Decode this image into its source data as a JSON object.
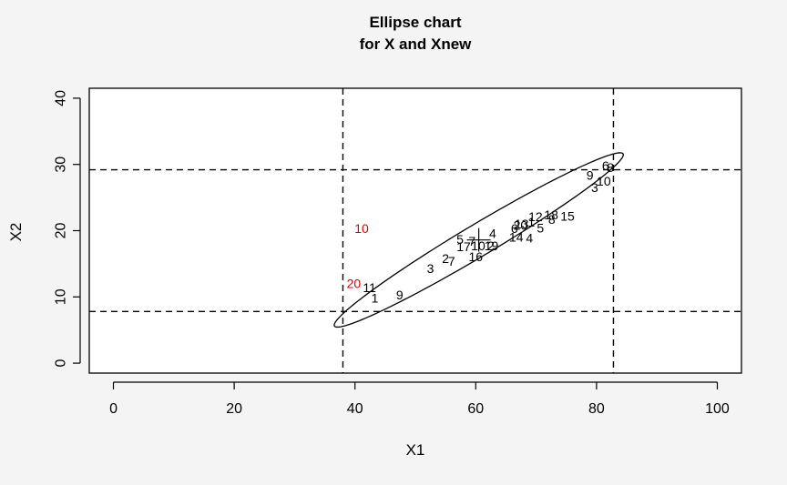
{
  "chart_data": {
    "type": "scatter",
    "title": "Ellipse chart",
    "subtitle": "for X and Xnew",
    "xlabel": "X1",
    "ylabel": "X2",
    "xlim": [
      -4,
      104
    ],
    "ylim": [
      -1.5,
      41.5
    ],
    "xticks": [
      0,
      20,
      40,
      60,
      80,
      100
    ],
    "yticks": [
      0,
      10,
      20,
      30,
      40
    ],
    "grid": false,
    "colors": {
      "in_control": "#000000",
      "out_of_control": "#e00000"
    },
    "center": [
      60.5,
      18.6
    ],
    "ellipse": {
      "center": [
        60.5,
        18.6
      ],
      "semi_major": 27.2,
      "semi_minor": 2.45,
      "angle_deg": 28.5
    },
    "limits": {
      "x_lower": 38,
      "x_upper": 82.8,
      "y_lower": 7.8,
      "y_upper": 29.2
    },
    "series": [
      {
        "name": "X",
        "points": [
          {
            "label": "1",
            "x": 43.3,
            "y": 9.8
          },
          {
            "label": "2",
            "x": 55.0,
            "y": 15.8
          },
          {
            "label": "3",
            "x": 52.5,
            "y": 14.3
          },
          {
            "label": "4",
            "x": 62.8,
            "y": 19.6
          },
          {
            "label": "5",
            "x": 57.4,
            "y": 18.7
          },
          {
            "label": "6",
            "x": 66.4,
            "y": 20.3
          },
          {
            "label": "7",
            "x": 56.0,
            "y": 15.4
          },
          {
            "label": "8",
            "x": 72.6,
            "y": 21.7
          },
          {
            "label": "9",
            "x": 47.4,
            "y": 10.3
          },
          {
            "label": "10",
            "x": 81.2,
            "y": 27.5
          },
          {
            "label": "11",
            "x": 42.4,
            "y": 11.4
          },
          {
            "label": "12",
            "x": 69.9,
            "y": 22.1
          },
          {
            "label": "13",
            "x": 67.6,
            "y": 21.0
          },
          {
            "label": "14",
            "x": 66.7,
            "y": 19.0
          },
          {
            "label": "15",
            "x": 75.2,
            "y": 22.2
          },
          {
            "label": "16",
            "x": 60.0,
            "y": 16.1
          },
          {
            "label": "17",
            "x": 58.0,
            "y": 17.6
          },
          {
            "label": "18",
            "x": 72.5,
            "y": 22.4
          },
          {
            "label": "19",
            "x": 62.6,
            "y": 17.7
          },
          {
            "label": "20",
            "x": 67.4,
            "y": 20.8
          },
          {
            "label": "1",
            "x": 69.2,
            "y": 21.3
          },
          {
            "label": "2",
            "x": 62.5,
            "y": 17.7
          },
          {
            "label": "3",
            "x": 79.7,
            "y": 26.5
          },
          {
            "label": "4",
            "x": 68.9,
            "y": 18.9
          },
          {
            "label": "5",
            "x": 70.7,
            "y": 20.4
          },
          {
            "label": "6",
            "x": 81.5,
            "y": 29.8
          },
          {
            "label": "7",
            "x": 59.4,
            "y": 18.4
          },
          {
            "label": "8",
            "x": 82.3,
            "y": 29.5
          },
          {
            "label": "9",
            "x": 78.9,
            "y": 28.4
          },
          {
            "label": "10",
            "x": 60.4,
            "y": 17.7
          }
        ]
      },
      {
        "name": "Xnew",
        "points": [
          {
            "label": "10",
            "x": 41.1,
            "y": 20.3
          },
          {
            "label": "20",
            "x": 39.8,
            "y": 12.0
          }
        ]
      }
    ]
  }
}
